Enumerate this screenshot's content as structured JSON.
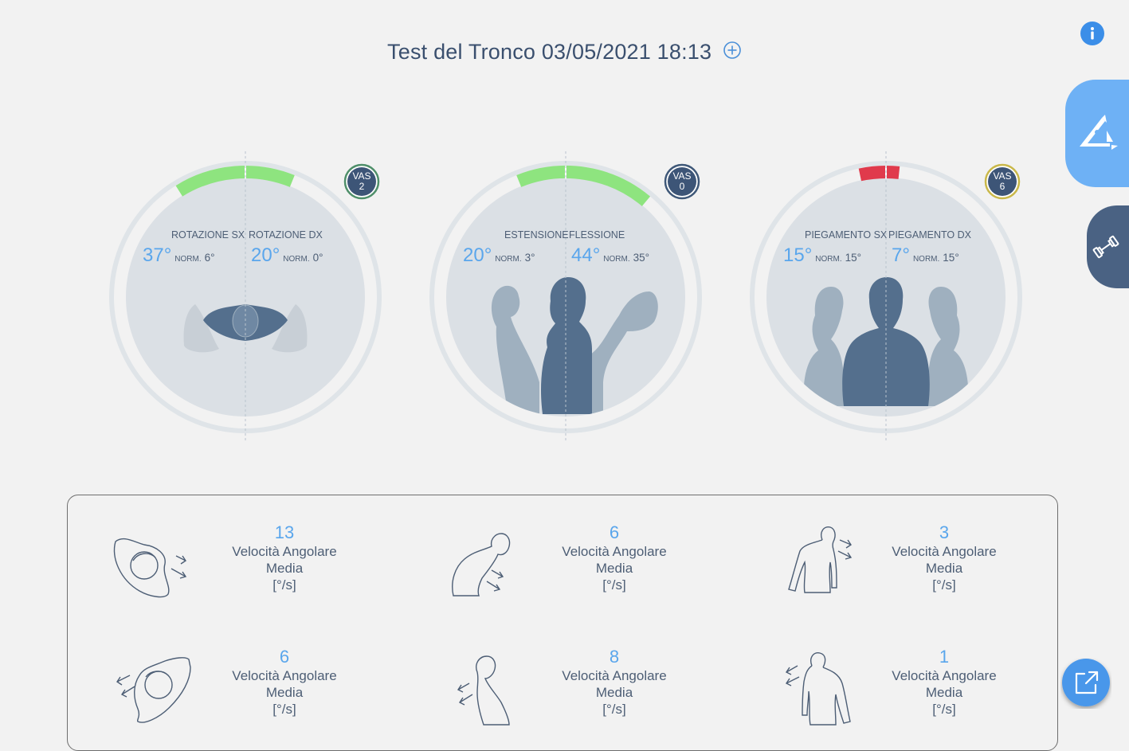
{
  "header": {
    "title": "Test del Tronco 03/05/2021 18:13"
  },
  "colors": {
    "accent": "#5aa6ec",
    "dark": "#4d6a8c",
    "good": "#8ee47f",
    "bad": "#e03a4c",
    "side_button": "#6eb1f5"
  },
  "gauges": [
    {
      "left_label": "ROTAZIONE SX",
      "right_label": "ROTAZIONE DX",
      "left_value": "37°",
      "left_norm_label": "NORM.",
      "left_norm": "6°",
      "right_value": "20°",
      "right_norm_label": "NORM.",
      "right_norm": "0°",
      "vas_label": "VAS",
      "vas_value": "2",
      "vas_ring": "#4f8f6a",
      "status": "good"
    },
    {
      "left_label": "ESTENSIONE",
      "right_label": "FLESSIONE",
      "left_value": "20°",
      "left_norm_label": "NORM.",
      "left_norm": "3°",
      "right_value": "44°",
      "right_norm_label": "NORM.",
      "right_norm": "35°",
      "vas_label": "VAS",
      "vas_value": "0",
      "vas_ring": "#3f5878",
      "status": "good"
    },
    {
      "left_label": "PIEGAMENTO SX",
      "right_label": "PIEGAMENTO DX",
      "left_value": "15°",
      "left_norm_label": "NORM.",
      "left_norm": "15°",
      "right_value": "7°",
      "right_norm_label": "NORM.",
      "right_norm": "15°",
      "vas_label": "VAS",
      "vas_value": "6",
      "vas_ring": "#c9b84a",
      "status": "bad"
    }
  ],
  "metrics": [
    {
      "value": "13",
      "label1": "Velocità Angolare",
      "label2": "Media",
      "unit": "[°/s]",
      "icon": "rotation-left-icon"
    },
    {
      "value": "6",
      "label1": "Velocità Angolare",
      "label2": "Media",
      "unit": "[°/s]",
      "icon": "flexion-icon"
    },
    {
      "value": "3",
      "label1": "Velocità Angolare",
      "label2": "Media",
      "unit": "[°/s]",
      "icon": "bend-right-icon"
    },
    {
      "value": "6",
      "label1": "Velocità Angolare",
      "label2": "Media",
      "unit": "[°/s]",
      "icon": "rotation-right-icon"
    },
    {
      "value": "8",
      "label1": "Velocità Angolare",
      "label2": "Media",
      "unit": "[°/s]",
      "icon": "extension-icon"
    },
    {
      "value": "1",
      "label1": "Velocità Angolare",
      "label2": "Media",
      "unit": "[°/s]",
      "icon": "bend-left-icon"
    }
  ],
  "sidebar": {
    "buttons": [
      "angle-measure-icon",
      "dumbbell-icon"
    ]
  },
  "actions": {
    "share": "external-link-icon",
    "info": "info-icon"
  }
}
